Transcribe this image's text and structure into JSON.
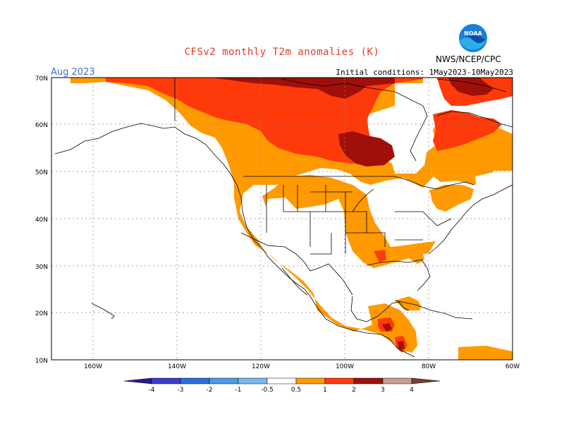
{
  "header": {
    "title": "CFSv2 monthly T2m anomalies (K)",
    "month": "Aug 2023",
    "initial_conditions": "Initial conditions: 1May2023-10May2023",
    "credit": "NWS/NCEP/CPC",
    "logo_text": "NOAA"
  },
  "map": {
    "lat_labels": [
      "70N",
      "60N",
      "50N",
      "40N",
      "30N",
      "20N",
      "10N"
    ],
    "lon_labels": [
      "160W",
      "140W",
      "120W",
      "100W",
      "80W",
      "60W"
    ],
    "lat_range": [
      10,
      70
    ],
    "lon_range": [
      -170,
      -60
    ],
    "grid": true
  },
  "legend": {
    "labels": [
      "-4",
      "-3",
      "-2",
      "-1",
      "-0.5",
      "0.5",
      "1",
      "2",
      "3",
      "4"
    ],
    "colors": [
      "#241c8c",
      "#3b3bd0",
      "#2f6ed8",
      "#4a9be8",
      "#7ab8f0",
      "#ffffff",
      "#ff9a00",
      "#ff3a0a",
      "#a0100a",
      "#c8a090",
      "#7a4030"
    ],
    "bins": [
      "< -4",
      "-4 to -3",
      "-3 to -2",
      "-2 to -1",
      "-1 to -0.5",
      "-0.5 to 0.5",
      "0.5 to 1",
      "1 to 2",
      "2 to 3",
      "3 to 4",
      "> 4"
    ]
  },
  "colors": {
    "title": "#e23a2a",
    "month": "#3f6fd0",
    "orange": "#ff9a00",
    "red": "#ff3a0a",
    "darkred": "#a0100a"
  }
}
